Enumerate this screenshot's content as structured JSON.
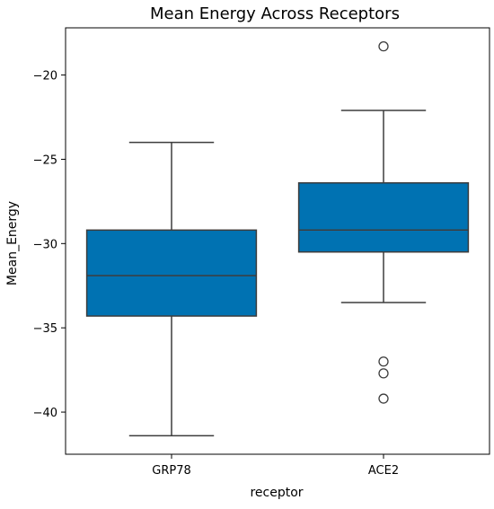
{
  "chart_data": {
    "type": "box",
    "title": "Mean Energy Across Receptors",
    "xlabel": "receptor",
    "ylabel": "Mean_Energy",
    "categories": [
      "GRP78",
      "ACE2"
    ],
    "ylim": [
      -42.5,
      -17.2
    ],
    "yticks": [
      -20,
      -25,
      -30,
      -35,
      -40
    ],
    "ytick_labels": [
      "−20",
      "−25",
      "−30",
      "−35",
      "−40"
    ],
    "box_color": "#0072B2",
    "line_color": "#3d3d3d",
    "grid": false,
    "boxes": [
      {
        "category": "GRP78",
        "whisker_low": -41.4,
        "q1": -34.3,
        "median": -31.9,
        "q3": -29.2,
        "whisker_high": -24.0,
        "outliers": []
      },
      {
        "category": "ACE2",
        "whisker_low": -33.5,
        "q1": -30.5,
        "median": -29.2,
        "q3": -26.4,
        "whisker_high": -22.1,
        "outliers": [
          -18.3,
          -37.0,
          -37.7,
          -39.2
        ]
      }
    ]
  }
}
